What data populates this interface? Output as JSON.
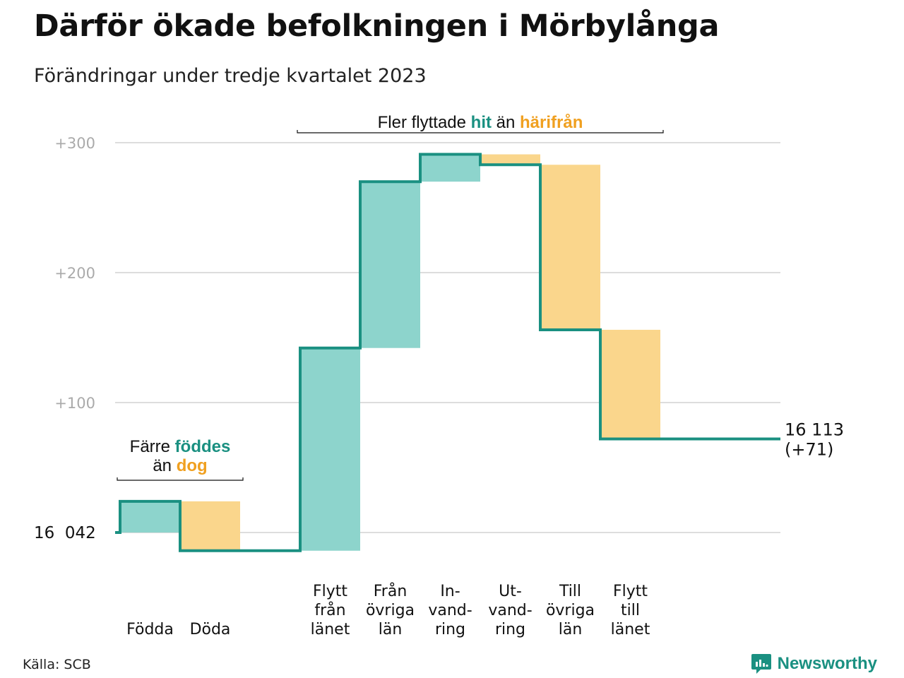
{
  "header": {
    "title": "Därför ökade befolkningen i Mörbylånga",
    "subtitle": "Förändringar under tredje kvartalet 2023"
  },
  "footer": {
    "source": "Källa: SCB",
    "brand": "Newsworthy"
  },
  "colors": {
    "increase": "#8dd4cc",
    "decrease": "#fad68c",
    "line": "#1a9081",
    "highlight_hit": "#1a9081",
    "highlight_harifran": "#f0a020",
    "grid": "#dddddd",
    "tick": "#aaaaaa"
  },
  "chart_data": {
    "type": "waterfall",
    "baseline": 16042,
    "start_label": "16  042",
    "end_label": [
      "16 113",
      "(+71)"
    ],
    "ylim": [
      -20,
      300
    ],
    "yticks": [
      {
        "value": 100,
        "label": "+100"
      },
      {
        "value": 200,
        "label": "+200"
      },
      {
        "value": 300,
        "label": "+300"
      }
    ],
    "grid": true,
    "steps": [
      {
        "label": [
          "Födda"
        ],
        "change": 24
      },
      {
        "label": [
          "Döda"
        ],
        "change": -38
      },
      {
        "label": [],
        "change": 0
      },
      {
        "label": [
          "Flytt",
          "från",
          "länet"
        ],
        "change": 156
      },
      {
        "label": [
          "Från",
          "övriga",
          "län"
        ],
        "change": 128
      },
      {
        "label": [
          "In-",
          "vand-",
          "ring"
        ],
        "change": 21
      },
      {
        "label": [
          "Ut-",
          "vand-",
          "ring"
        ],
        "change": -8
      },
      {
        "label": [
          "Till",
          "övriga",
          "län"
        ],
        "change": -127
      },
      {
        "label": [
          "Flytt",
          "till",
          "länet"
        ],
        "change": -84
      }
    ],
    "annotations": [
      {
        "span": [
          0,
          1
        ],
        "lines": [
          [
            {
              "text": "Färre ",
              "style": "plain"
            },
            {
              "text": "föddes",
              "style": "hit"
            }
          ],
          [
            {
              "text": "än ",
              "style": "plain"
            },
            {
              "text": "dog",
              "style": "harifran"
            }
          ]
        ]
      },
      {
        "span": [
          3,
          8
        ],
        "lines": [
          [
            {
              "text": "Fler flyttade ",
              "style": "plain"
            },
            {
              "text": "hit",
              "style": "hit"
            },
            {
              "text": " än ",
              "style": "plain"
            },
            {
              "text": "härifrån",
              "style": "harifran"
            }
          ]
        ]
      }
    ]
  }
}
